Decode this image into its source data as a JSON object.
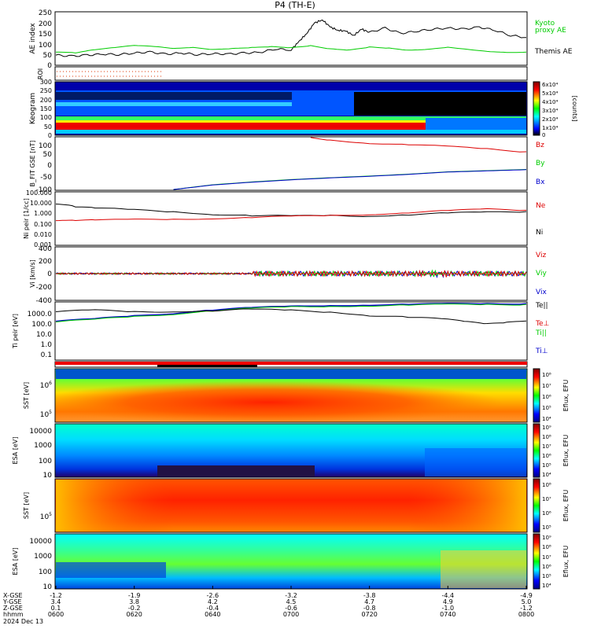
{
  "title": "P4 (TH-E)",
  "date_label": "2024 Dec 13",
  "footer": {
    "row_labels": [
      "X-GSE",
      "Y-GSE",
      "Z-GSE",
      "hhmm"
    ],
    "columns": [
      {
        "x": "-1.2",
        "y": "3.4",
        "z": "0.1",
        "t": "0600"
      },
      {
        "x": "-1.9",
        "y": "3.8",
        "z": "-0.2",
        "t": "0620"
      },
      {
        "x": "-2.6",
        "y": "4.2",
        "z": "-0.4",
        "t": "0640"
      },
      {
        "x": "-3.2",
        "y": "4.5",
        "z": "-0.6",
        "t": "0700"
      },
      {
        "x": "-3.8",
        "y": "4.7",
        "z": "-0.8",
        "t": "0720"
      },
      {
        "x": "-4.4",
        "y": "4.9",
        "z": "-1.0",
        "t": "0740"
      },
      {
        "x": "-4.9",
        "y": "5.0",
        "z": "-1.2",
        "t": "0800"
      }
    ]
  },
  "colors": {
    "green": "#00cc00",
    "red": "#dd0000",
    "blue": "#0000cc",
    "black": "#000000"
  },
  "chart_data": [
    {
      "id": "ae",
      "type": "line",
      "ylabel": "AE index",
      "ylim": [
        0,
        250
      ],
      "yticks": [
        "250",
        "200",
        "150",
        "100",
        "50",
        "0"
      ],
      "legend": [
        {
          "name": "Kyoto",
          "color": "#00cc00"
        },
        {
          "name": "proxy AE",
          "color": "#00cc00"
        },
        {
          "name": "Themis AE",
          "color": "#000000"
        }
      ],
      "series": [
        {
          "name": "Themis AE",
          "color": "#000000",
          "x": [
            0,
            4,
            8,
            12,
            16,
            20,
            24,
            28,
            32,
            36,
            40,
            44,
            48,
            52,
            56,
            60,
            62,
            64,
            66,
            68,
            70,
            72,
            74,
            76,
            78,
            80,
            84,
            88,
            92,
            96,
            100,
            104,
            108,
            112,
            116,
            120
          ],
          "y": [
            45,
            40,
            45,
            50,
            48,
            55,
            60,
            50,
            55,
            48,
            52,
            50,
            55,
            58,
            75,
            70,
            110,
            150,
            200,
            215,
            180,
            165,
            160,
            140,
            170,
            155,
            175,
            150,
            160,
            170,
            175,
            170,
            180,
            165,
            140,
            130
          ]
        },
        {
          "name": "Kyoto proxy AE",
          "color": "#00cc00",
          "x": [
            0,
            5,
            10,
            15,
            20,
            25,
            30,
            35,
            40,
            45,
            50,
            55,
            60,
            65,
            70,
            75,
            80,
            85,
            90,
            95,
            100,
            105,
            110,
            115,
            120
          ],
          "y": [
            60,
            55,
            70,
            80,
            90,
            85,
            75,
            80,
            70,
            75,
            80,
            85,
            80,
            90,
            75,
            70,
            85,
            80,
            70,
            75,
            85,
            75,
            65,
            60,
            60
          ]
        }
      ]
    },
    {
      "id": "roi",
      "type": "scatter",
      "ylabel": "ROI",
      "markers": "dotted",
      "x_range": [
        0,
        38
      ]
    },
    {
      "id": "keogram",
      "type": "heatmap",
      "ylabel": "Keogram",
      "ylim": [
        0,
        300
      ],
      "yticks": [
        "300",
        "250",
        "200",
        "150",
        "100",
        "50",
        "0"
      ],
      "colorbar": {
        "label": "[counts]",
        "ticks": [
          "6x10⁴",
          "5x10⁴",
          "4x10⁴",
          "3x10⁴",
          "2x10⁴",
          "1x10⁴",
          "0"
        ]
      }
    },
    {
      "id": "bfield",
      "type": "line",
      "ylabel": "B_FIT GSE [nT]",
      "ylim": [
        -100,
        120
      ],
      "yticks": [
        "100",
        "50",
        "0",
        "-50",
        "-100"
      ],
      "legend": [
        {
          "name": "Bz",
          "color": "#dd0000"
        },
        {
          "name": "By",
          "color": "#00cc00"
        },
        {
          "name": "Bx",
          "color": "#0000cc"
        }
      ],
      "series": [
        {
          "name": "Bz",
          "color": "#dd0000",
          "x": [
            65,
            70,
            80,
            90,
            100,
            110,
            120
          ],
          "y": [
            120,
            110,
            97,
            90,
            82,
            72,
            60
          ]
        },
        {
          "name": "By",
          "color": "#00cc00",
          "x": [
            30,
            40,
            50,
            60,
            70,
            80,
            90,
            100,
            110,
            120
          ],
          "y": [
            -100,
            -80,
            -68,
            -58,
            -50,
            -43,
            -35,
            -25,
            -20,
            -15
          ]
        },
        {
          "name": "Bx",
          "color": "#0000cc",
          "x": [
            30,
            40,
            50,
            60,
            70,
            80,
            90,
            100,
            110,
            120
          ],
          "y": [
            -100,
            -81,
            -69,
            -59,
            -51,
            -44,
            -36,
            -26,
            -21,
            -16
          ]
        }
      ]
    },
    {
      "id": "density",
      "type": "line",
      "ylabel": "Ni peir [1/cc]",
      "yscale": "log",
      "ylim": [
        0.001,
        100
      ],
      "yticks": [
        "100.000",
        "10.000",
        "1.000",
        "0.100",
        "0.010",
        "0.001"
      ],
      "legend": [
        {
          "name": "Ne",
          "color": "#dd0000"
        },
        {
          "name": "Ni",
          "color": "#000000"
        }
      ],
      "series": [
        {
          "name": "Ni",
          "color": "#000000",
          "x": [
            0,
            5,
            10,
            20,
            30,
            40,
            50,
            60,
            70,
            80,
            90,
            100,
            110,
            120
          ],
          "y": [
            8,
            4,
            3,
            2,
            1.5,
            0.9,
            0.6,
            0.5,
            0.6,
            0.6,
            0.8,
            1,
            1.2,
            1.5
          ]
        },
        {
          "name": "Ne",
          "color": "#dd0000",
          "x": [
            0,
            5,
            10,
            20,
            30,
            40,
            50,
            60,
            70,
            80,
            90,
            100,
            110,
            120
          ],
          "y": [
            0.2,
            0.2,
            0.22,
            0.25,
            0.28,
            0.33,
            0.4,
            0.5,
            0.6,
            0.8,
            1.2,
            1.8,
            2.5,
            2
          ]
        }
      ]
    },
    {
      "id": "velocity",
      "type": "line",
      "ylabel": "Vi [km/s]",
      "ylim": [
        -400,
        400
      ],
      "yticks": [
        "400",
        "200",
        "0",
        "-200",
        "-400"
      ],
      "legend": [
        {
          "name": "Viz",
          "color": "#dd0000"
        },
        {
          "name": "Viy",
          "color": "#00cc00"
        },
        {
          "name": "Vix",
          "color": "#0000cc"
        }
      ],
      "series": [
        {
          "name": "Vi",
          "values": "near zero"
        }
      ]
    },
    {
      "id": "temperature",
      "type": "line",
      "ylabel": "Ti peir [eV]",
      "yscale": "log",
      "ylim": [
        0.05,
        5000
      ],
      "yticks": [
        "1000.0",
        "100.0",
        "10.0",
        "1.0",
        "0.1"
      ],
      "legend": [
        {
          "name": "Te||",
          "color": "#000000"
        },
        {
          "name": "Te⊥",
          "color": "#dd0000"
        },
        {
          "name": "Ti||",
          "color": "#00cc00"
        },
        {
          "name": "Ti⊥",
          "color": "#0000cc"
        }
      ],
      "series": [
        {
          "name": "Te",
          "color": "#000000",
          "x": [
            0,
            10,
            20,
            30,
            40,
            50,
            60,
            70,
            80,
            90,
            100,
            105,
            110,
            115,
            120
          ],
          "y": [
            800,
            1000,
            800,
            900,
            1000,
            1200,
            1000,
            800,
            400,
            250,
            150,
            90,
            60,
            80,
            120
          ]
        },
        {
          "name": "Ti",
          "color": "#00cc00",
          "x": [
            0,
            10,
            20,
            30,
            40,
            50,
            60,
            70,
            80,
            90,
            100,
            110,
            120
          ],
          "y": [
            100,
            150,
            300,
            500,
            1000,
            1500,
            2000,
            2500,
            2800,
            3000,
            3300,
            3500,
            3600
          ]
        }
      ]
    },
    {
      "id": "sst_omni",
      "type": "heatmap",
      "ylabel": "SST [eV]",
      "colorbar": {
        "label": "Eflux, EFU",
        "ticks": [
          "10⁸",
          "10⁷",
          "10⁶",
          "10⁵",
          "10⁴"
        ]
      }
    },
    {
      "id": "esa_omni",
      "type": "heatmap",
      "ylabel": "ESA [eV]",
      "yticks": [
        "10000",
        "1000",
        "100",
        "10"
      ],
      "colorbar": {
        "label": "Eflux, EFU",
        "ticks": [
          "10⁹",
          "10⁸",
          "10⁷",
          "10⁶",
          "10⁵",
          "10⁴"
        ]
      }
    },
    {
      "id": "sst_i",
      "type": "heatmap",
      "ylabel": "SST [eV]",
      "colorbar": {
        "label": "Eflux, EFU",
        "ticks": [
          "10⁸",
          "10⁷",
          "10⁶",
          "10⁵"
        ]
      }
    },
    {
      "id": "esa_i",
      "type": "heatmap",
      "ylabel": "ESA [eV]",
      "yticks": [
        "10000",
        "1000",
        "100",
        "10"
      ],
      "colorbar": {
        "label": "Eflux, EFU",
        "ticks": [
          "10⁹",
          "10⁸",
          "10⁷",
          "10⁶",
          "10⁵",
          "10⁴"
        ]
      }
    }
  ]
}
